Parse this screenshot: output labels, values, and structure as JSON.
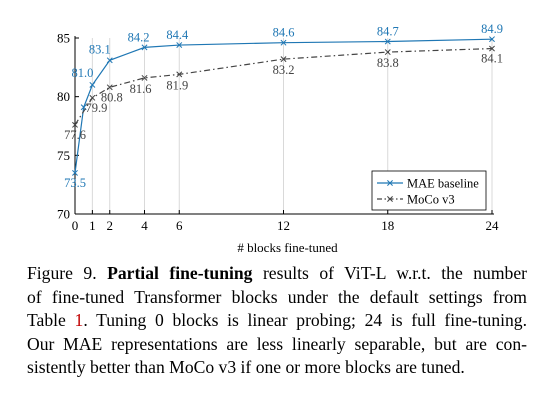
{
  "chart_data": {
    "type": "line",
    "x": [
      0,
      1,
      2,
      4,
      6,
      12,
      18,
      24
    ],
    "xticks": [
      0,
      1,
      2,
      4,
      6,
      12,
      18,
      24
    ],
    "xlabel": "# blocks fine-tuned",
    "ylabel": "",
    "ylim": [
      70,
      85
    ],
    "yticks": [
      70,
      75,
      80,
      85
    ],
    "grid": "vertical lines at x ticks",
    "legend_position": "bottom-right",
    "series": [
      {
        "name": "MAE baseline",
        "values": [
          73.5,
          79.1,
          81.0,
          83.1,
          84.2,
          84.4,
          84.6,
          84.7,
          84.9
        ],
        "x": [
          0,
          0.5,
          1,
          2,
          4,
          6,
          12,
          18,
          24
        ],
        "labels": [
          "73.5",
          "",
          "81.0",
          "83.1",
          "84.2",
          "84.4",
          "84.6",
          "84.7",
          "84.9"
        ],
        "color": "#1f77b4",
        "style": "solid",
        "marker": "x"
      },
      {
        "name": "MoCo v3",
        "values": [
          77.6,
          79.9,
          80.8,
          81.6,
          81.9,
          83.2,
          83.8,
          84.1
        ],
        "x": [
          0,
          1,
          2,
          4,
          6,
          12,
          18,
          24
        ],
        "labels": [
          "77.6",
          "79.9",
          "80.8",
          "81.6",
          "81.9",
          "83.2",
          "83.8",
          "84.1"
        ],
        "color": "#444444",
        "style": "dashdot",
        "marker": "x"
      }
    ]
  },
  "caption": {
    "figure": "Figure 9.",
    "bold": "Partial fine-tuning",
    "line1_rest": "results of ViT-L w.r.t. the number",
    "line2": "of fine-tuned Transformer blocks under the default settings from",
    "line3_pre": "Table",
    "line3_ref": "1",
    "line3_post": ". Tuning 0 blocks is linear probing; 24 is full fine-tuning.",
    "line4": "Our MAE representations are less linearly separable, but are con-",
    "line5": "sistently better than MoCo v3 if one or more blocks are tuned."
  }
}
